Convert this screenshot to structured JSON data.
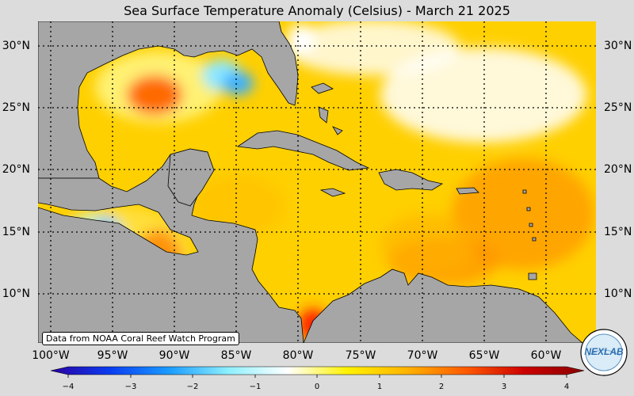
{
  "title": "Sea Surface Temperature Anomaly (Celsius) - March 21 2025",
  "credit": "Data from NOAA Coral Reef Watch Program",
  "logo_text": "NEXLAB",
  "lat_labels": [
    "30°N",
    "25°N",
    "20°N",
    "15°N",
    "10°N"
  ],
  "lon_labels": [
    "100°W",
    "95°W",
    "90°W",
    "85°W",
    "80°W",
    "75°W",
    "70°W",
    "65°W",
    "60°W"
  ],
  "colorbar": {
    "min": -4,
    "max": 4,
    "tick_labels": [
      "−4",
      "−3",
      "−2",
      "−1",
      "0",
      "1",
      "2",
      "3",
      "4"
    ],
    "colors": [
      "#2a00a0",
      "#0a3cf0",
      "#1a9cff",
      "#8ef0ff",
      "#ffffff",
      "#fff200",
      "#ffb400",
      "#ff5a00",
      "#cc0000",
      "#8a0000"
    ]
  },
  "colors": {
    "land": "#a6a6a6",
    "background": "#dcdcdc",
    "base_anomaly": "#ffd400"
  }
}
